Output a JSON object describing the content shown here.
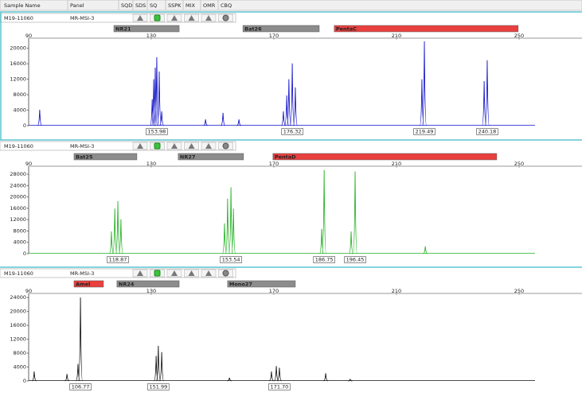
{
  "header": {
    "columns": [
      "Sample Name",
      "Panel",
      "SQD",
      "SDS",
      "SQ",
      "SSPK",
      "MIX",
      "OMR",
      "CBQ"
    ]
  },
  "panels": [
    {
      "sample_name": "M19-11060",
      "panel_name": "MR-MSI-3",
      "trace_color": "#1010c8",
      "bins": [
        {
          "label": "NR21",
          "start": 117.8,
          "end": 139.1,
          "color": "#8c8c8c"
        },
        {
          "label": "Bat26",
          "start": 159.9,
          "end": 184.8,
          "color": "#8c8c8c"
        },
        {
          "label": "PentaC",
          "start": 189.7,
          "end": 249.7,
          "color": "#e8403f"
        }
      ],
      "xlim": [
        90,
        250
      ],
      "xticks": [
        90,
        130,
        170,
        210,
        250
      ],
      "ylim": [
        0,
        22000
      ],
      "yticks": [
        0,
        4000,
        8000,
        12000,
        16000,
        20000
      ],
      "peaks": [
        {
          "x": 93.6,
          "height": 4100
        },
        {
          "x": 130.3,
          "height": 6800
        },
        {
          "x": 130.8,
          "height": 12000
        },
        {
          "x": 131.3,
          "height": 15000
        },
        {
          "x": 131.8,
          "height": 17700,
          "label": "153.98"
        },
        {
          "x": 132.6,
          "height": 14000
        },
        {
          "x": 133.4,
          "height": 3700
        },
        {
          "x": 147.7,
          "height": 1600
        },
        {
          "x": 153.4,
          "height": 3300
        },
        {
          "x": 158.6,
          "height": 1600
        },
        {
          "x": 173.1,
          "height": 3700
        },
        {
          "x": 174.2,
          "height": 7800
        },
        {
          "x": 174.9,
          "height": 12000
        },
        {
          "x": 176.0,
          "height": 16100,
          "label": "176.32"
        },
        {
          "x": 177.0,
          "height": 9900
        },
        {
          "x": 218.3,
          "height": 12000
        },
        {
          "x": 219.1,
          "height": 21800,
          "label": "219.49"
        },
        {
          "x": 238.6,
          "height": 11500
        },
        {
          "x": 239.6,
          "height": 16900,
          "label": "240.18"
        }
      ]
    },
    {
      "sample_name": "M19-11060",
      "panel_name": "MR-MSI-3",
      "trace_color": "#22b022",
      "bins": [
        {
          "label": "Bat25",
          "start": 104.8,
          "end": 125.3,
          "color": "#8c8c8c"
        },
        {
          "label": "NR27",
          "start": 138.8,
          "end": 160.1,
          "color": "#8c8c8c"
        },
        {
          "label": "PentaD",
          "start": 169.7,
          "end": 242.7,
          "color": "#e8403f"
        }
      ],
      "xlim": [
        90,
        250
      ],
      "xticks": [
        90,
        130,
        170,
        210,
        250
      ],
      "ylim": [
        0,
        30000
      ],
      "yticks": [
        0,
        4000,
        8000,
        12000,
        16000,
        20000,
        24000,
        28000
      ],
      "peaks": [
        {
          "x": 117.0,
          "height": 7800
        },
        {
          "x": 118.1,
          "height": 15900
        },
        {
          "x": 119.1,
          "height": 18500,
          "label": "118.87"
        },
        {
          "x": 120.1,
          "height": 12100
        },
        {
          "x": 153.9,
          "height": 10700
        },
        {
          "x": 154.9,
          "height": 19400
        },
        {
          "x": 156.0,
          "height": 23400,
          "label": "153.54"
        },
        {
          "x": 156.8,
          "height": 15900
        },
        {
          "x": 185.6,
          "height": 8700
        },
        {
          "x": 186.4,
          "height": 29500,
          "label": "186.75"
        },
        {
          "x": 195.2,
          "height": 7800
        },
        {
          "x": 196.5,
          "height": 29000,
          "label": "196.45"
        },
        {
          "x": 219.4,
          "height": 2600
        }
      ]
    },
    {
      "sample_name": "M19-11060",
      "panel_name": "MR-MSI-3",
      "trace_color": "#111111",
      "bins": [
        {
          "label": "Amel",
          "start": 104.8,
          "end": 114.4,
          "color": "#e8403f"
        },
        {
          "label": "NR24",
          "start": 118.8,
          "end": 139.1,
          "color": "#8c8c8c"
        },
        {
          "label": "Mono27",
          "start": 154.9,
          "end": 177.0,
          "color": "#8c8c8c"
        }
      ],
      "xlim": [
        90,
        250
      ],
      "xticks": [
        90,
        130,
        170,
        210,
        250
      ],
      "ylim": [
        0,
        24500
      ],
      "yticks": [
        0,
        4000,
        8000,
        12000,
        16000,
        20000,
        24000
      ],
      "peaks": [
        {
          "x": 91.8,
          "height": 2700
        },
        {
          "x": 102.5,
          "height": 2000
        },
        {
          "x": 106.1,
          "height": 4900
        },
        {
          "x": 106.9,
          "height": 24000,
          "label": "106.77"
        },
        {
          "x": 131.6,
          "height": 7200
        },
        {
          "x": 132.3,
          "height": 10100,
          "label": "151.99"
        },
        {
          "x": 133.4,
          "height": 8300
        },
        {
          "x": 155.5,
          "height": 900
        },
        {
          "x": 169.2,
          "height": 2700
        },
        {
          "x": 170.8,
          "height": 4300
        },
        {
          "x": 171.8,
          "height": 3800,
          "label": "171.70"
        },
        {
          "x": 186.9,
          "height": 2200
        },
        {
          "x": 194.9,
          "height": 450
        }
      ]
    }
  ]
}
